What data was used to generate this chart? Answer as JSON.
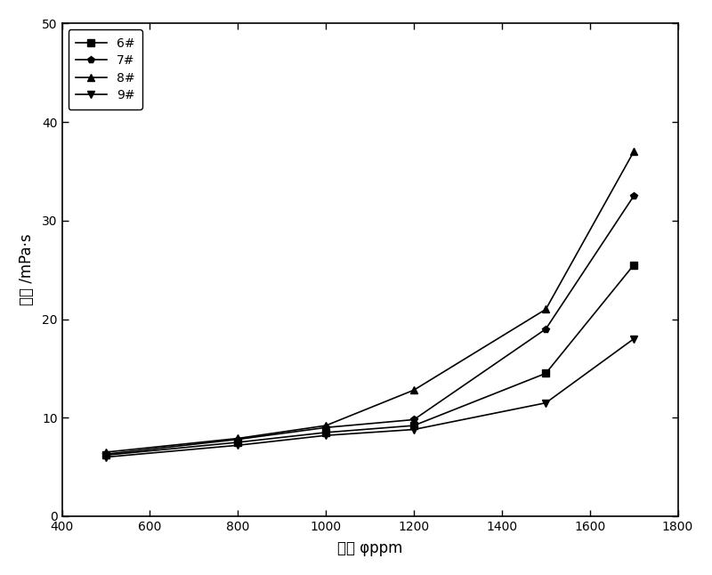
{
  "x": [
    500,
    800,
    1000,
    1200,
    1500,
    1700
  ],
  "series": [
    {
      "label": "6#",
      "y": [
        6.2,
        7.5,
        8.5,
        9.2,
        14.5,
        25.5
      ],
      "marker": "s",
      "color": "#000000"
    },
    {
      "label": "7#",
      "y": [
        6.3,
        7.8,
        9.0,
        9.8,
        19.0,
        32.5
      ],
      "marker": "p",
      "color": "#000000"
    },
    {
      "label": "8#",
      "y": [
        6.5,
        7.9,
        9.2,
        12.8,
        21.0,
        37.0
      ],
      "marker": "^",
      "color": "#000000"
    },
    {
      "label": "9#",
      "y": [
        6.0,
        7.2,
        8.2,
        8.8,
        11.5,
        18.0
      ],
      "marker": "v",
      "color": "#000000"
    }
  ],
  "xlabel_ascii": "浓度 φppm",
  "ylabel_ascii": "粘度 /mPa·s",
  "xlim": [
    400,
    1800
  ],
  "ylim": [
    0,
    50
  ],
  "xticks": [
    400,
    600,
    800,
    1000,
    1200,
    1400,
    1600,
    1800
  ],
  "yticks": [
    0,
    10,
    20,
    30,
    40,
    50
  ],
  "background_color": "#ffffff",
  "linewidth": 1.2,
  "markersize": 6,
  "legend_fontsize": 10,
  "axis_label_fontsize": 12,
  "tick_fontsize": 10,
  "figure_width": 8.0,
  "figure_height": 6.46
}
